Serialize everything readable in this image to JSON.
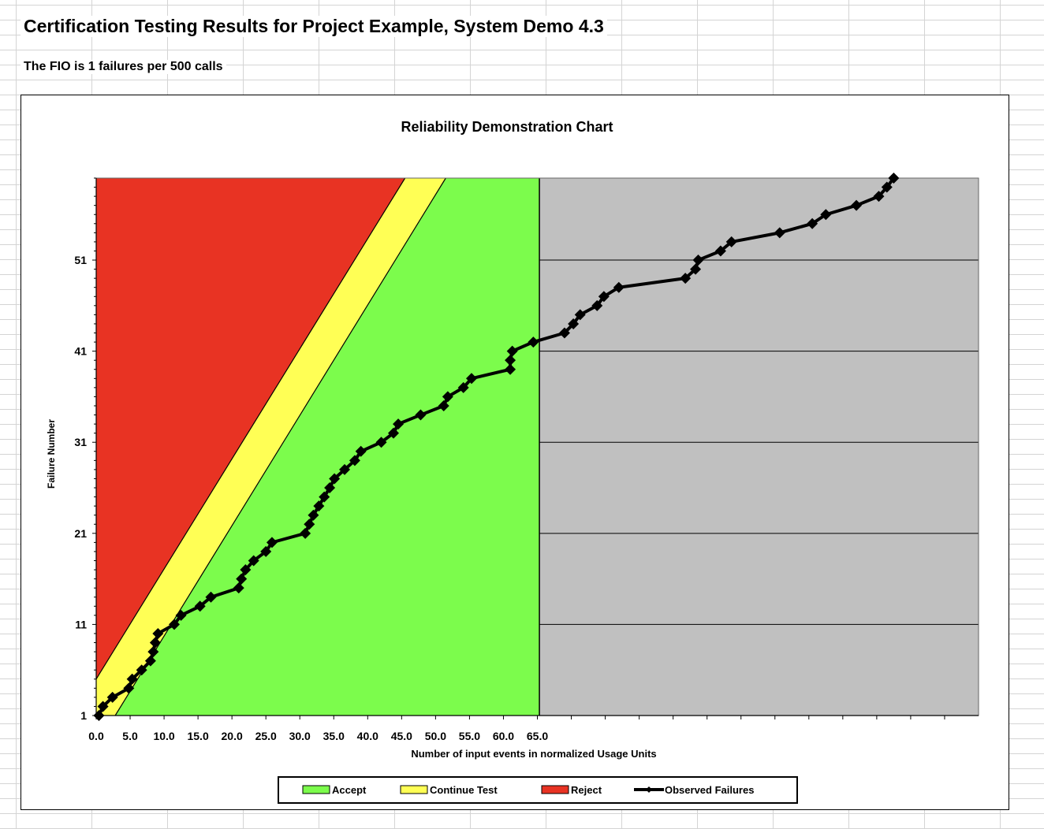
{
  "sheet": {
    "title": "Certification Testing Results for Project Example, System Demo 4.3",
    "fio_text": "The FIO is 1 failures per 500 calls"
  },
  "colors": {
    "accept": "#7CFC4C",
    "continue": "#FFFF55",
    "reject": "#E83323",
    "untested": "#C0C0C0",
    "observed": "#000000"
  },
  "chart_data": {
    "type": "area",
    "title": "Reliability Demonstration Chart",
    "xlabel": "Number of input events in normalized Usage Units",
    "ylabel": "Failure Number",
    "xlim": [
      0,
      130
    ],
    "ylim": [
      1,
      60
    ],
    "x_tick_labels": [
      "0.0",
      "5.0",
      "10.0",
      "15.0",
      "20.0",
      "25.0",
      "30.0",
      "35.0",
      "40.0",
      "45.0",
      "50.0",
      "55.0",
      "60.0",
      "65.0"
    ],
    "y_tick_labels": [
      "1",
      "11",
      "21",
      "31",
      "41",
      "51"
    ],
    "grid": "horizontal major gridlines",
    "legend_position": "bottom",
    "regions": {
      "reject_boundary": [
        [
          0,
          5
        ],
        [
          45.5,
          60
        ]
      ],
      "accept_boundary": [
        [
          2.8,
          1
        ],
        [
          51.5,
          60
        ]
      ],
      "plot_extent_x": 65.3
    },
    "series": [
      {
        "name": "Accept",
        "kind": "area"
      },
      {
        "name": "Continue Test",
        "kind": "area"
      },
      {
        "name": "Reject",
        "kind": "area"
      },
      {
        "name": "Observed Failures",
        "kind": "line",
        "points": [
          [
            0.4,
            1
          ],
          [
            1.0,
            2
          ],
          [
            2.4,
            3
          ],
          [
            4.8,
            4
          ],
          [
            5.3,
            5
          ],
          [
            6.7,
            6
          ],
          [
            8.0,
            7
          ],
          [
            8.4,
            8
          ],
          [
            8.7,
            9
          ],
          [
            9.1,
            10
          ],
          [
            11.5,
            11
          ],
          [
            12.5,
            12
          ],
          [
            15.3,
            13
          ],
          [
            16.9,
            14
          ],
          [
            21.0,
            15
          ],
          [
            21.4,
            16
          ],
          [
            22.0,
            17
          ],
          [
            23.2,
            18
          ],
          [
            25.0,
            19
          ],
          [
            25.9,
            20
          ],
          [
            30.8,
            21
          ],
          [
            31.4,
            22
          ],
          [
            32.0,
            23
          ],
          [
            32.8,
            24
          ],
          [
            33.6,
            25
          ],
          [
            34.4,
            26
          ],
          [
            35.1,
            27
          ],
          [
            36.6,
            28
          ],
          [
            38.1,
            29
          ],
          [
            39.0,
            30
          ],
          [
            42.0,
            31
          ],
          [
            43.8,
            32
          ],
          [
            44.5,
            33
          ],
          [
            47.8,
            34
          ],
          [
            51.2,
            35
          ],
          [
            51.8,
            36
          ],
          [
            54.1,
            37
          ],
          [
            55.3,
            38
          ],
          [
            61.0,
            39
          ],
          [
            61.0,
            40
          ],
          [
            61.3,
            41
          ],
          [
            64.4,
            42
          ],
          [
            69.0,
            43
          ],
          [
            70.3,
            44
          ],
          [
            71.3,
            45
          ],
          [
            73.8,
            46
          ],
          [
            74.8,
            47
          ],
          [
            77.0,
            48
          ],
          [
            86.8,
            49
          ],
          [
            88.3,
            50
          ],
          [
            88.7,
            51
          ],
          [
            92.0,
            52
          ],
          [
            93.6,
            53
          ],
          [
            100.7,
            54
          ],
          [
            105.5,
            55
          ],
          [
            107.5,
            56
          ],
          [
            112.0,
            57
          ],
          [
            115.3,
            58
          ],
          [
            116.5,
            59
          ],
          [
            117.5,
            60
          ]
        ]
      }
    ]
  }
}
